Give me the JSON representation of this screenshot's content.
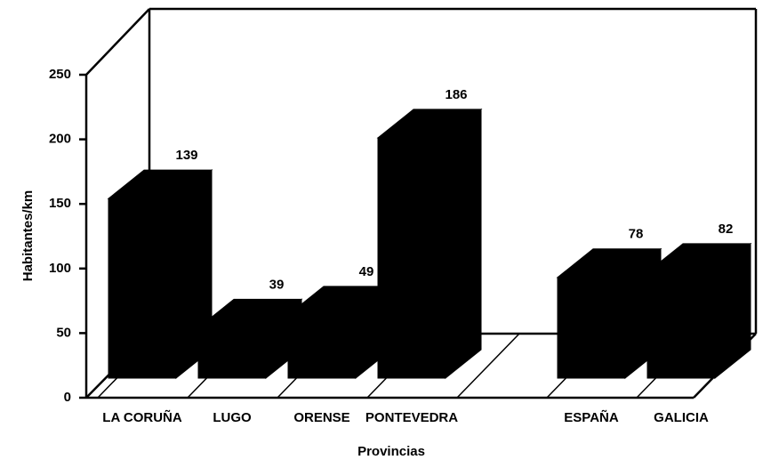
{
  "chart_data": {
    "type": "bar3d",
    "y_label": "Habitantes/km",
    "x_label": "Provincias",
    "categories": [
      "LA CORUÑA",
      "LUGO",
      "ORENSE",
      "PONTEVEDRA",
      null,
      "ESPAÑA",
      "GALICIA"
    ],
    "values": [
      139,
      39,
      49,
      186,
      null,
      78,
      82
    ],
    "color": "#000000",
    "ylim": [
      0,
      250
    ],
    "yticks": [
      0,
      50,
      100,
      150,
      200,
      250
    ]
  }
}
